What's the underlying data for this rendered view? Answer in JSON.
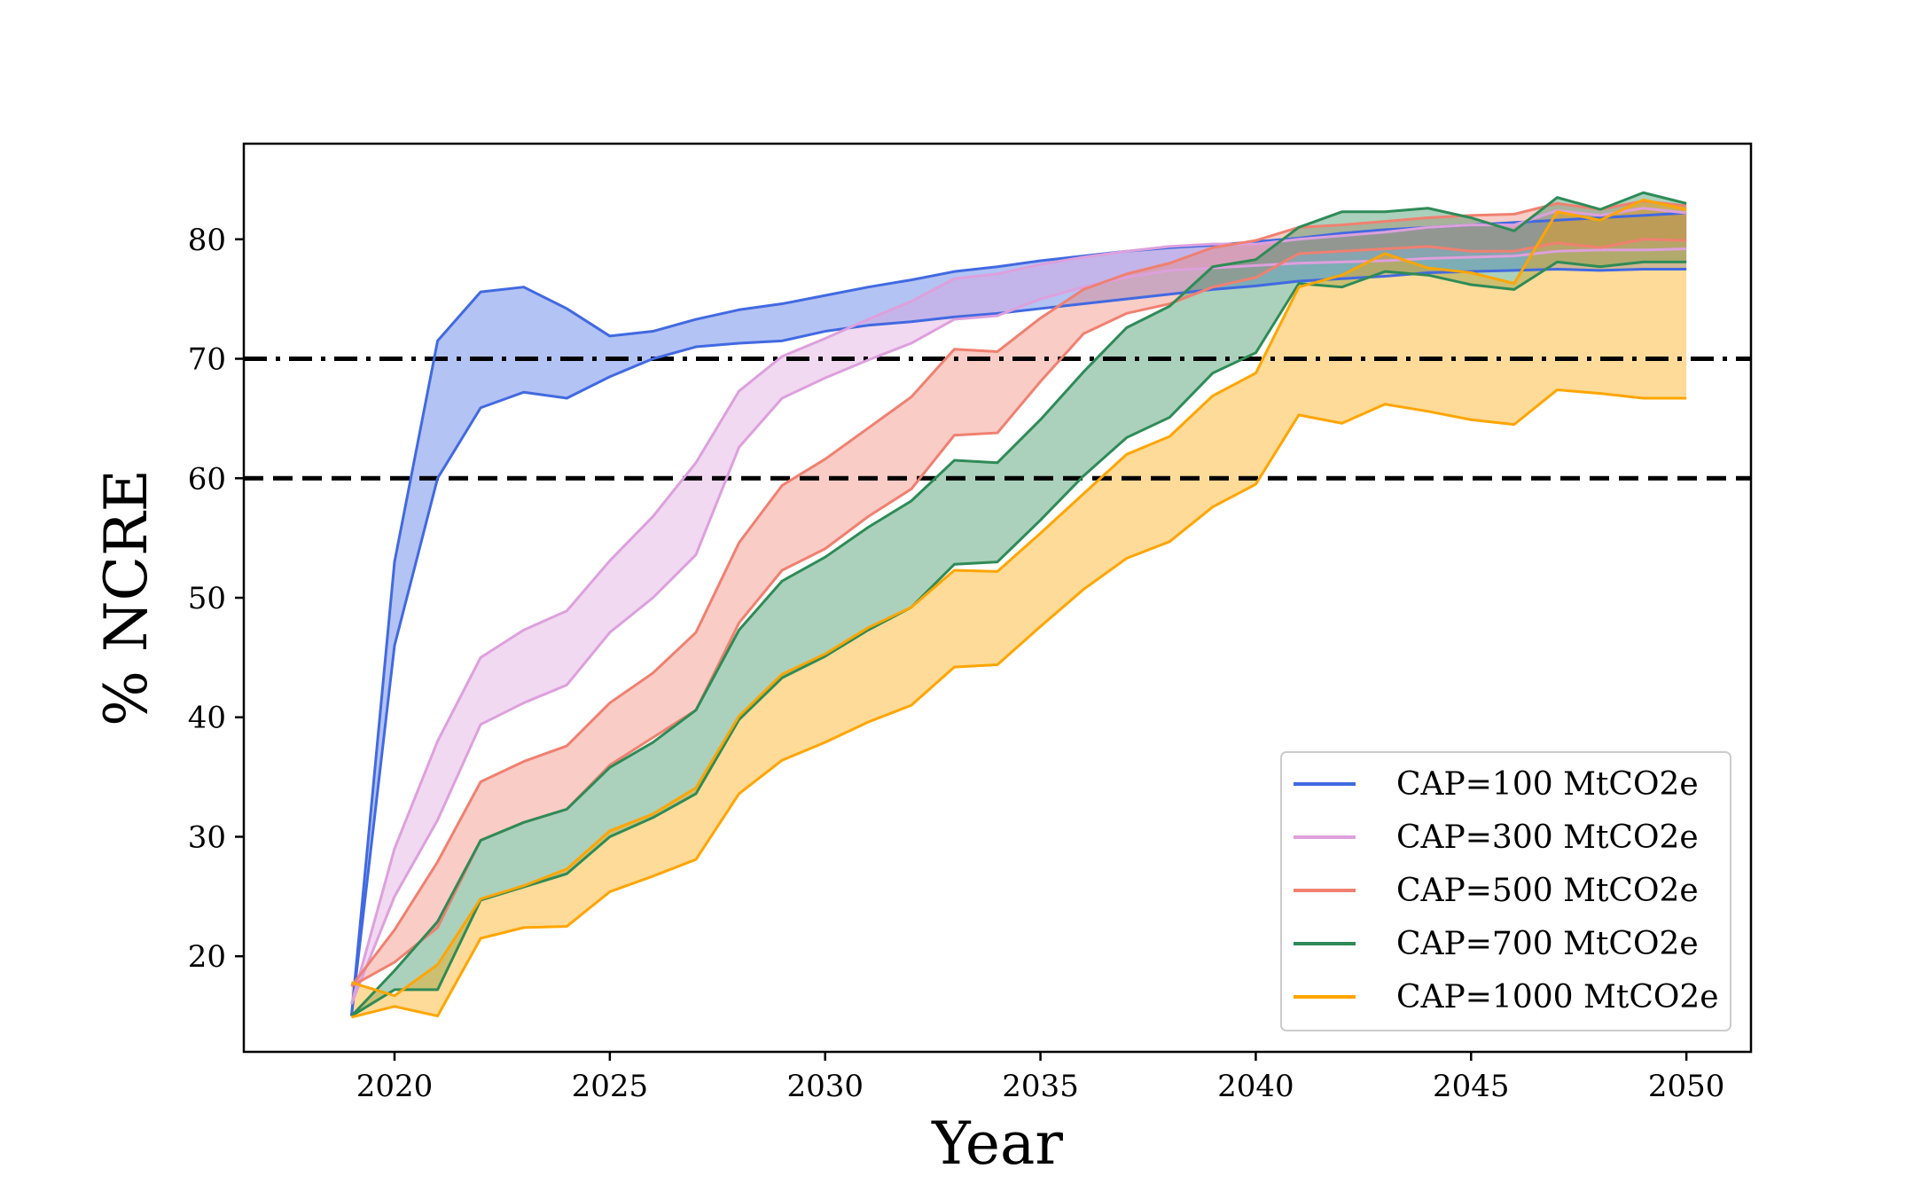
{
  "chart_data": {
    "type": "area",
    "title": "",
    "xlabel": "Year",
    "ylabel": "% NCRE",
    "xlim": [
      2016.5,
      2051.5
    ],
    "ylim": [
      12,
      88
    ],
    "xticks": [
      2020,
      2025,
      2030,
      2035,
      2040,
      2045,
      2050
    ],
    "yticks": [
      20,
      30,
      40,
      50,
      60,
      70,
      80
    ],
    "legend_position": "lower-right",
    "reference_lines": [
      {
        "name": "target-70",
        "y": 70,
        "style": "dashdot",
        "color": "#000000"
      },
      {
        "name": "target-60",
        "y": 60,
        "style": "dashed",
        "color": "#000000"
      }
    ],
    "x": [
      2019,
      2020,
      2021,
      2022,
      2023,
      2024,
      2025,
      2026,
      2027,
      2028,
      2029,
      2030,
      2031,
      2032,
      2033,
      2034,
      2035,
      2036,
      2037,
      2038,
      2039,
      2040,
      2041,
      2042,
      2043,
      2044,
      2045,
      2046,
      2047,
      2048,
      2049,
      2050
    ],
    "series": [
      {
        "name": "CAP=100 MtCO2e",
        "line_color": "#4169E1",
        "fill_color": "#4169E1",
        "upper": [
          15,
          53,
          71.5,
          75.6,
          76,
          74.2,
          71.9,
          72.3,
          73.3,
          74.1,
          74.6,
          75.3,
          76,
          76.6,
          77.3,
          77.7,
          78.2,
          78.6,
          79,
          79.3,
          79.5,
          79.8,
          80.1,
          80.5,
          80.8,
          81,
          81.2,
          81.4,
          81.6,
          81.8,
          82,
          82.2
        ],
        "lower": [
          15,
          46,
          60,
          65.9,
          67.2,
          66.7,
          68.5,
          70,
          71,
          71.3,
          71.5,
          72.3,
          72.8,
          73.1,
          73.5,
          73.8,
          74.2,
          74.6,
          75,
          75.4,
          75.8,
          76.1,
          76.5,
          76.7,
          76.9,
          77.2,
          77.3,
          77.4,
          77.5,
          77.4,
          77.5,
          77.5
        ]
      },
      {
        "name": "CAP=300 MtCO2e",
        "line_color": "#DDA0DD",
        "fill_color": "#DDA0DD",
        "upper": [
          16,
          29,
          38,
          45,
          47.3,
          48.9,
          53.1,
          56.8,
          61.3,
          67.3,
          70.2,
          71.7,
          73.3,
          74.8,
          76.7,
          77.1,
          77.9,
          78.5,
          79,
          79.4,
          79.6,
          79.6,
          80,
          80.3,
          80.6,
          81,
          81.2,
          81.2,
          82.4,
          82,
          82.6,
          82.2
        ],
        "lower": [
          16,
          25,
          31.4,
          39.4,
          41.2,
          42.7,
          47.1,
          50,
          53.6,
          62.6,
          66.7,
          68.4,
          69.9,
          71.3,
          73.3,
          73.6,
          75,
          76,
          76.8,
          77.4,
          77.6,
          77.8,
          78,
          78.1,
          78.2,
          78.4,
          78.5,
          78.6,
          79,
          79.1,
          79.1,
          79.2
        ]
      },
      {
        "name": "CAP=500 MtCO2e",
        "line_color": "#F08070",
        "fill_color": "#F08070",
        "upper": [
          17.5,
          22.2,
          27.9,
          34.6,
          36.3,
          37.6,
          41.2,
          43.7,
          47.1,
          54.6,
          59.4,
          61.6,
          64.2,
          66.8,
          70.8,
          70.6,
          73.4,
          75.8,
          77.1,
          78,
          79.3,
          79.9,
          81,
          81.2,
          81.5,
          81.8,
          82,
          82.1,
          83,
          82.5,
          83.2,
          82.8
        ],
        "lower": [
          17.5,
          19.5,
          22.4,
          29.7,
          31.2,
          32.3,
          36,
          38.3,
          40.6,
          47.9,
          52.3,
          54.1,
          56.8,
          59.1,
          63.6,
          63.8,
          68.1,
          72.1,
          73.8,
          74.6,
          76,
          76.8,
          78.8,
          79,
          79.2,
          79.4,
          79,
          79,
          79.7,
          79.3,
          80,
          79.9
        ]
      },
      {
        "name": "CAP=700 MtCO2e",
        "line_color": "#2E8B57",
        "fill_color": "#2E8B57",
        "upper": [
          15,
          18.8,
          22.9,
          29.7,
          31.2,
          32.3,
          35.8,
          37.9,
          40.6,
          47.3,
          51.4,
          53.4,
          55.9,
          58.1,
          61.5,
          61.3,
          64.9,
          68.9,
          72.6,
          74.4,
          77.7,
          78.3,
          81,
          82.3,
          82.3,
          82.6,
          81.8,
          80.7,
          83.5,
          82.5,
          83.9,
          83
        ],
        "lower": [
          15,
          17.2,
          17.2,
          24.7,
          25.8,
          26.9,
          30,
          31.6,
          33.6,
          39.8,
          43.3,
          45.1,
          47.3,
          49.2,
          52.8,
          53,
          56.5,
          60.2,
          63.4,
          65.1,
          68.8,
          70.5,
          76.3,
          76,
          77.3,
          77,
          76.2,
          75.8,
          78.1,
          77.7,
          78.1,
          78.1
        ]
      },
      {
        "name": "CAP=1000 MtCO2e",
        "line_color": "#FFA500",
        "fill_color": "#FFA500",
        "upper": [
          17.8,
          16.7,
          19.3,
          24.8,
          25.9,
          27.3,
          30.5,
          31.9,
          34.1,
          40.1,
          43.6,
          45.3,
          47.5,
          49.2,
          52.3,
          52.2,
          55.4,
          58.7,
          62,
          63.5,
          66.9,
          68.8,
          76,
          77,
          78.8,
          77.6,
          77.2,
          76.3,
          82.3,
          81.6,
          83.3,
          82.5
        ],
        "lower": [
          14.9,
          15.8,
          15,
          21.5,
          22.4,
          22.5,
          25.4,
          26.7,
          28.1,
          33.6,
          36.4,
          37.9,
          39.6,
          41,
          44.2,
          44.4,
          47.6,
          50.7,
          53.3,
          54.7,
          57.6,
          59.5,
          65.3,
          64.6,
          66.2,
          65.6,
          64.9,
          64.5,
          67.4,
          67.1,
          66.7,
          66.7
        ]
      }
    ]
  }
}
